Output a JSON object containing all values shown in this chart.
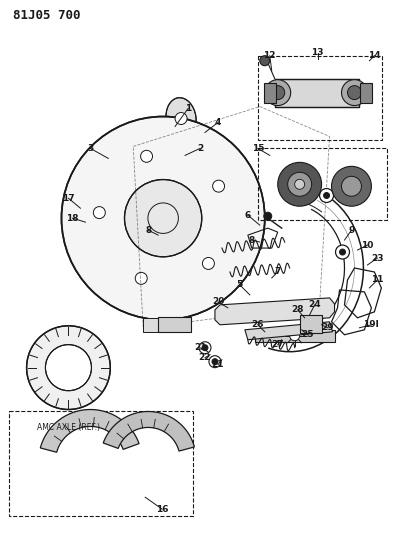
{
  "title": "81J05 700",
  "bg_color": "#ffffff",
  "line_color": "#1a1a1a",
  "fig_width": 4.01,
  "fig_height": 5.33,
  "dpi": 100,
  "amc_axle_text": "AMC AXLE (REF.)"
}
